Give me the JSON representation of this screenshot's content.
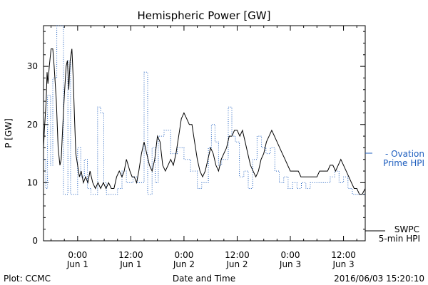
{
  "chart_data": {
    "type": "line",
    "title": "Hemispheric Power [GW]",
    "xlabel": "Date and Time",
    "ylabel": "P [GW]",
    "ylim": [
      0,
      37
    ],
    "yticks": [
      0,
      10,
      20,
      30
    ],
    "x_start_hour": -7.7,
    "x_end_hour": 64.9,
    "xticks": [
      {
        "hour": 0,
        "time": "0:00",
        "date": "Jun 1"
      },
      {
        "hour": 12,
        "time": "12:00",
        "date": "Jun 1"
      },
      {
        "hour": 24,
        "time": "0:00",
        "date": "Jun 2"
      },
      {
        "hour": 36,
        "time": "12:00",
        "date": "Jun 2"
      },
      {
        "hour": 48,
        "time": "0:00",
        "date": "Jun 3"
      },
      {
        "hour": 60,
        "time": "12:00",
        "date": "Jun 3"
      }
    ],
    "series": [
      {
        "name": "SWPC 5-min HPI",
        "color": "#000000",
        "style": "solid",
        "legend_lines": [
          "SWPC",
          "5-min HPI"
        ],
        "points": [
          [
            -7.7,
            16
          ],
          [
            -7.5,
            19
          ],
          [
            -7.1,
            24
          ],
          [
            -6.9,
            29
          ],
          [
            -6.7,
            27
          ],
          [
            -6.4,
            30
          ],
          [
            -6.0,
            33
          ],
          [
            -5.6,
            33
          ],
          [
            -5.3,
            30
          ],
          [
            -4.8,
            24
          ],
          [
            -4.4,
            16
          ],
          [
            -4.0,
            13
          ],
          [
            -3.7,
            14
          ],
          [
            -3.4,
            19
          ],
          [
            -3.0,
            25
          ],
          [
            -2.6,
            30
          ],
          [
            -2.3,
            31
          ],
          [
            -2.0,
            26
          ],
          [
            -1.7,
            31
          ],
          [
            -1.3,
            33
          ],
          [
            -1.0,
            28
          ],
          [
            -0.7,
            21
          ],
          [
            -0.4,
            15
          ],
          [
            0.0,
            13
          ],
          [
            0.4,
            11
          ],
          [
            0.8,
            12
          ],
          [
            1.3,
            10
          ],
          [
            1.8,
            11
          ],
          [
            2.3,
            10
          ],
          [
            2.8,
            12
          ],
          [
            3.4,
            10
          ],
          [
            4.0,
            9
          ],
          [
            4.6,
            10
          ],
          [
            5.2,
            9
          ],
          [
            5.8,
            10
          ],
          [
            6.4,
            9
          ],
          [
            7.0,
            10
          ],
          [
            7.6,
            9
          ],
          [
            8.2,
            9
          ],
          [
            8.8,
            11
          ],
          [
            9.4,
            12
          ],
          [
            10.0,
            11
          ],
          [
            10.5,
            12
          ],
          [
            11.0,
            14
          ],
          [
            11.4,
            13
          ],
          [
            11.8,
            12
          ],
          [
            12.3,
            11
          ],
          [
            12.8,
            11
          ],
          [
            13.3,
            10
          ],
          [
            13.8,
            12
          ],
          [
            14.4,
            15
          ],
          [
            15.0,
            17
          ],
          [
            15.6,
            15
          ],
          [
            16.2,
            13
          ],
          [
            16.8,
            12
          ],
          [
            17.4,
            14
          ],
          [
            18.0,
            18
          ],
          [
            18.6,
            17
          ],
          [
            19.2,
            13
          ],
          [
            19.8,
            12
          ],
          [
            20.4,
            13
          ],
          [
            21.0,
            14
          ],
          [
            21.6,
            13
          ],
          [
            22.2,
            15
          ],
          [
            22.8,
            18
          ],
          [
            23.4,
            21
          ],
          [
            24.0,
            22
          ],
          [
            24.6,
            21
          ],
          [
            25.2,
            20
          ],
          [
            25.8,
            20
          ],
          [
            26.4,
            17
          ],
          [
            27.0,
            14
          ],
          [
            27.6,
            12
          ],
          [
            28.2,
            11
          ],
          [
            28.8,
            12
          ],
          [
            29.4,
            14
          ],
          [
            30.0,
            16
          ],
          [
            30.6,
            15
          ],
          [
            31.2,
            13
          ],
          [
            31.8,
            12
          ],
          [
            32.4,
            14
          ],
          [
            33.0,
            15
          ],
          [
            33.6,
            16
          ],
          [
            34.2,
            18
          ],
          [
            34.8,
            18
          ],
          [
            35.4,
            19
          ],
          [
            36.0,
            19
          ],
          [
            36.6,
            18
          ],
          [
            37.2,
            19
          ],
          [
            37.8,
            17
          ],
          [
            38.4,
            15
          ],
          [
            39.0,
            13
          ],
          [
            39.6,
            12
          ],
          [
            40.2,
            11
          ],
          [
            40.8,
            12
          ],
          [
            41.4,
            14
          ],
          [
            42.0,
            15
          ],
          [
            42.6,
            17
          ],
          [
            43.2,
            18
          ],
          [
            43.8,
            19
          ],
          [
            44.4,
            18
          ],
          [
            45.0,
            17
          ],
          [
            45.6,
            16
          ],
          [
            46.2,
            15
          ],
          [
            46.8,
            14
          ],
          [
            47.4,
            13
          ],
          [
            48.0,
            12
          ],
          [
            48.6,
            12
          ],
          [
            49.2,
            12
          ],
          [
            49.8,
            12
          ],
          [
            50.4,
            11
          ],
          [
            51.0,
            11
          ],
          [
            51.6,
            11
          ],
          [
            52.2,
            11
          ],
          [
            52.8,
            11
          ],
          [
            53.4,
            11
          ],
          [
            54.0,
            11
          ],
          [
            54.6,
            12
          ],
          [
            55.2,
            12
          ],
          [
            55.8,
            12
          ],
          [
            56.4,
            12
          ],
          [
            57.0,
            13
          ],
          [
            57.6,
            13
          ],
          [
            58.2,
            12
          ],
          [
            58.8,
            13
          ],
          [
            59.4,
            14
          ],
          [
            60.0,
            13
          ],
          [
            60.6,
            12
          ],
          [
            61.2,
            11
          ],
          [
            61.8,
            10
          ],
          [
            62.4,
            9
          ],
          [
            63.0,
            9
          ],
          [
            63.6,
            8
          ],
          [
            64.2,
            8
          ],
          [
            64.9,
            9
          ]
        ]
      },
      {
        "name": "Ovation Prime HPI",
        "color": "#1f5fbf",
        "style": "dotted",
        "legend_lines": [
          "- Ovation",
          "Prime HPI"
        ],
        "points": [
          [
            -7.7,
            14
          ],
          [
            -7.2,
            14
          ],
          [
            -7.2,
            9
          ],
          [
            -6.8,
            9
          ],
          [
            -6.8,
            25
          ],
          [
            -6.1,
            25
          ],
          [
            -6.1,
            13
          ],
          [
            -5.6,
            13
          ],
          [
            -5.6,
            28
          ],
          [
            -4.7,
            28
          ],
          [
            -4.7,
            37
          ],
          [
            -3.2,
            37
          ],
          [
            -3.2,
            8
          ],
          [
            -2.2,
            8
          ],
          [
            -2.2,
            31
          ],
          [
            -1.6,
            31
          ],
          [
            -1.6,
            8
          ],
          [
            0.0,
            8
          ],
          [
            0.0,
            16
          ],
          [
            0.7,
            16
          ],
          [
            0.7,
            11
          ],
          [
            1.5,
            11
          ],
          [
            1.5,
            14
          ],
          [
            2.2,
            14
          ],
          [
            2.2,
            9
          ],
          [
            3.0,
            9
          ],
          [
            3.0,
            8
          ],
          [
            4.5,
            8
          ],
          [
            4.5,
            23
          ],
          [
            5.2,
            23
          ],
          [
            5.2,
            22
          ],
          [
            5.9,
            22
          ],
          [
            5.9,
            10
          ],
          [
            6.5,
            10
          ],
          [
            6.5,
            8
          ],
          [
            9.0,
            8
          ],
          [
            9.0,
            9
          ],
          [
            10.0,
            9
          ],
          [
            10.0,
            12
          ],
          [
            11.0,
            12
          ],
          [
            11.0,
            10
          ],
          [
            12.5,
            10
          ],
          [
            12.5,
            11
          ],
          [
            13.5,
            11
          ],
          [
            13.5,
            10
          ],
          [
            15.0,
            10
          ],
          [
            15.0,
            29
          ],
          [
            15.8,
            29
          ],
          [
            15.8,
            8
          ],
          [
            16.8,
            8
          ],
          [
            16.8,
            16
          ],
          [
            17.5,
            16
          ],
          [
            17.5,
            10
          ],
          [
            18.2,
            10
          ],
          [
            18.2,
            18
          ],
          [
            19.5,
            18
          ],
          [
            19.5,
            19
          ],
          [
            21.0,
            19
          ],
          [
            21.0,
            15
          ],
          [
            22.5,
            15
          ],
          [
            22.5,
            16
          ],
          [
            24.0,
            16
          ],
          [
            24.0,
            14
          ],
          [
            25.5,
            14
          ],
          [
            25.5,
            12
          ],
          [
            27.0,
            12
          ],
          [
            27.0,
            9
          ],
          [
            28.0,
            9
          ],
          [
            28.0,
            10
          ],
          [
            29.5,
            10
          ],
          [
            29.5,
            16
          ],
          [
            30.2,
            16
          ],
          [
            30.2,
            20
          ],
          [
            31.0,
            20
          ],
          [
            31.0,
            17
          ],
          [
            31.8,
            17
          ],
          [
            31.8,
            13
          ],
          [
            32.5,
            13
          ],
          [
            32.5,
            14
          ],
          [
            34.0,
            14
          ],
          [
            34.0,
            23
          ],
          [
            34.8,
            23
          ],
          [
            34.8,
            18
          ],
          [
            35.6,
            18
          ],
          [
            35.6,
            17
          ],
          [
            36.5,
            17
          ],
          [
            36.5,
            11
          ],
          [
            37.5,
            11
          ],
          [
            37.5,
            12
          ],
          [
            38.5,
            12
          ],
          [
            38.5,
            9
          ],
          [
            39.5,
            9
          ],
          [
            39.5,
            14
          ],
          [
            40.5,
            14
          ],
          [
            40.5,
            18
          ],
          [
            41.5,
            18
          ],
          [
            41.5,
            16
          ],
          [
            42.5,
            16
          ],
          [
            42.5,
            15
          ],
          [
            43.5,
            15
          ],
          [
            43.5,
            16
          ],
          [
            44.5,
            16
          ],
          [
            44.5,
            12
          ],
          [
            45.5,
            12
          ],
          [
            45.5,
            10
          ],
          [
            46.5,
            10
          ],
          [
            46.5,
            11
          ],
          [
            47.5,
            11
          ],
          [
            47.5,
            9
          ],
          [
            48.5,
            9
          ],
          [
            48.5,
            10
          ],
          [
            49.5,
            10
          ],
          [
            49.5,
            9
          ],
          [
            50.5,
            9
          ],
          [
            50.5,
            10
          ],
          [
            51.5,
            10
          ],
          [
            51.5,
            9
          ],
          [
            52.5,
            9
          ],
          [
            52.5,
            10
          ],
          [
            57.0,
            10
          ],
          [
            57.0,
            11
          ],
          [
            58.0,
            11
          ],
          [
            58.0,
            12
          ],
          [
            59.0,
            12
          ],
          [
            59.0,
            10
          ],
          [
            60.0,
            10
          ],
          [
            60.0,
            11
          ],
          [
            61.0,
            11
          ],
          [
            61.0,
            9
          ],
          [
            62.0,
            9
          ],
          [
            62.0,
            8
          ],
          [
            64.9,
            8
          ]
        ]
      }
    ],
    "legend": "right"
  },
  "footer": {
    "left": "Plot: CCMC",
    "right": "2016/06/03 15:20:10"
  }
}
